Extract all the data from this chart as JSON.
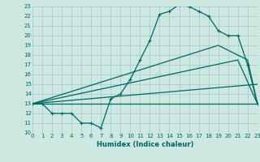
{
  "xlabel": "Humidex (Indice chaleur)",
  "xlim": [
    0,
    23
  ],
  "ylim": [
    10,
    23
  ],
  "yticks": [
    10,
    11,
    12,
    13,
    14,
    15,
    16,
    17,
    18,
    19,
    20,
    21,
    22,
    23
  ],
  "xticks": [
    0,
    1,
    2,
    3,
    4,
    5,
    6,
    7,
    8,
    9,
    10,
    11,
    12,
    13,
    14,
    15,
    16,
    17,
    18,
    19,
    20,
    21,
    22,
    23
  ],
  "bg_color": "#cce8e0",
  "grid_color": "#aacccc",
  "line_color": "#006666",
  "lines": [
    {
      "x": [
        0,
        1,
        2,
        3,
        4,
        5,
        6,
        7,
        8,
        9,
        10,
        11,
        12,
        13,
        14,
        15,
        16,
        17,
        18,
        19,
        20,
        21,
        22,
        23
      ],
      "y": [
        13,
        13,
        12,
        12,
        12,
        11,
        11,
        10.5,
        13.5,
        14,
        15.5,
        17.5,
        19.5,
        22.2,
        22.5,
        23.2,
        23,
        22.5,
        22,
        20.5,
        20,
        20,
        17,
        13
      ],
      "marker": true
    },
    {
      "x": [
        0,
        23
      ],
      "y": [
        13,
        13
      ],
      "marker": false
    },
    {
      "x": [
        0,
        23
      ],
      "y": [
        13,
        15
      ],
      "marker": false
    },
    {
      "x": [
        0,
        21,
        23
      ],
      "y": [
        13,
        17.5,
        13
      ],
      "marker": false
    },
    {
      "x": [
        0,
        19,
        22,
        23
      ],
      "y": [
        13,
        19,
        17.5,
        13
      ],
      "marker": false
    }
  ]
}
